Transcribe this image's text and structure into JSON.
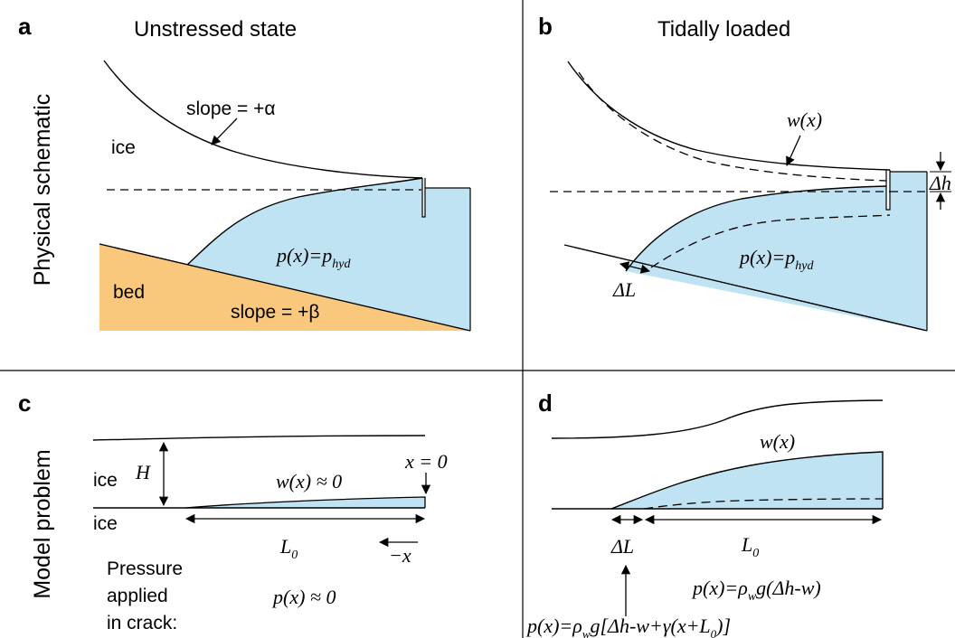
{
  "rows": {
    "top": "Physical schematic",
    "bottom": "Model problem"
  },
  "panels": {
    "a": {
      "letter": "a",
      "title": "Unstressed state",
      "ice": "ice",
      "slope_alpha": "slope = +α",
      "bed": "bed",
      "slope_beta": "slope = +β",
      "pressure": {
        "p": "p(x)=p",
        "sub": "hyd"
      }
    },
    "b": {
      "letter": "b",
      "title": "Tidally loaded",
      "w": "w(x)",
      "delta_h": "Δh",
      "delta_L": "ΔL",
      "pressure": {
        "p": "p(x)=p",
        "sub": "hyd"
      }
    },
    "c": {
      "letter": "c",
      "ice_top": "ice",
      "ice_bottom": "ice",
      "H": "H",
      "w": "w(x) ≈ 0",
      "x0": "x = 0",
      "L0": {
        "L": "L",
        "sub": "0"
      },
      "neg_x": "−x",
      "pressure_lines": [
        "Pressure",
        "applied",
        "in crack:"
      ],
      "pressure": "p(x) ≈ 0"
    },
    "d": {
      "letter": "d",
      "w": "w(x)",
      "delta_L": "ΔL",
      "L0": {
        "L": "L",
        "sub": "0"
      },
      "p1": {
        "a": "p(x)=ρ",
        "sub": "w",
        "b": "g(Δh-w)"
      },
      "p2": {
        "a": "p(x)=ρ",
        "sub": "w",
        "b": "g[Δh-w+γ(x+L",
        "sub2": "0",
        "c": ")]"
      }
    }
  },
  "colors": {
    "water": "#bfe3f3",
    "bed": "#f9c87d",
    "line": "#000000"
  }
}
